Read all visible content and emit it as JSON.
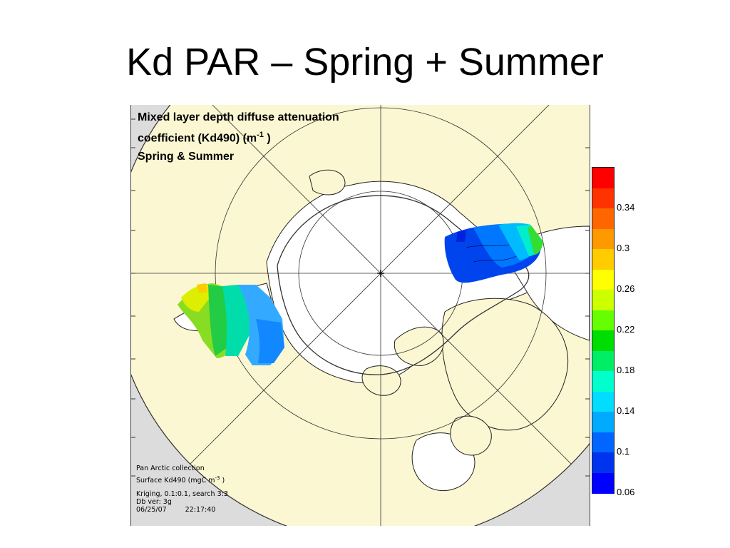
{
  "slide": {
    "title": "Kd PAR – Spring + Summer"
  },
  "map": {
    "title_line1": "Mixed layer depth diffuse attenuation",
    "title_line2_prefix": "coefficient (Kd490) (m",
    "title_line2_sup": "-1",
    "title_line2_suffix": " )",
    "title_line3": "Spring & Summer",
    "projection": "north polar stereographic",
    "background_color": "#dcdcdc",
    "land_color": "#fbf7d2",
    "ocean_color": "#ffffff"
  },
  "footnote": {
    "line1": "Pan Arctic collection",
    "line2_prefix": "Surface Kd490 (mgC m",
    "line2_sup": "-3",
    "line2_suffix": " )",
    "line3": "Kriging, 0.1:0.1, search 3:3",
    "line4": "Db ver: 3g",
    "line5_date": "06/25/07",
    "line5_time": "22:17:40"
  },
  "colorbar": {
    "colors": [
      "#ff0000",
      "#ff3300",
      "#ff6600",
      "#ff9900",
      "#ffcc00",
      "#ffff00",
      "#ccff00",
      "#66ff00",
      "#00dd00",
      "#00ee66",
      "#00ffcc",
      "#00ddff",
      "#00aaff",
      "#0066ff",
      "#0033ee",
      "#0000ff"
    ],
    "tick_labels": [
      "0.34",
      "0.3",
      "0.26",
      "0.22",
      "0.18",
      "0.14",
      "0.1",
      "0.06"
    ]
  }
}
